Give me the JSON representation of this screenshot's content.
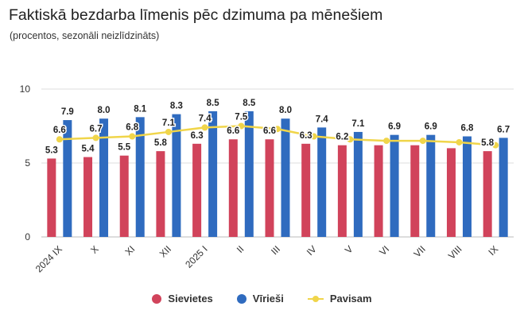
{
  "chart_data": {
    "type": "bar",
    "title": "Faktiskā bezdarba līmenis pēc dzimuma pa mēnešiem",
    "subtitle": "(procentos, sezonāli neizlīdzināts)",
    "categories": [
      "2024 IX",
      "X",
      "XI",
      "XII",
      "2025 I",
      "II",
      "III",
      "IV",
      "V",
      "VI",
      "VII",
      "VIII",
      "IX"
    ],
    "ylim": [
      0,
      10
    ],
    "yticks": [
      0,
      5,
      10
    ],
    "grid": true,
    "legend_position": "bottom",
    "series": [
      {
        "name": "Sievietes",
        "kind": "bar",
        "color": "#d1435b",
        "values": [
          5.3,
          5.4,
          5.5,
          5.8,
          6.3,
          6.6,
          6.6,
          6.3,
          6.2,
          6.2,
          6.2,
          6.0,
          5.8
        ],
        "labels": [
          "5.3",
          "5.4",
          "5.5",
          "5.8",
          "6.3",
          "6.6",
          "6.6",
          "6.3",
          "6.2",
          "",
          "",
          "",
          "5.8"
        ]
      },
      {
        "name": "Vīrieši",
        "kind": "bar",
        "color": "#2f6bbf",
        "values": [
          7.9,
          8.0,
          8.1,
          8.3,
          8.5,
          8.5,
          8.0,
          7.4,
          7.1,
          6.9,
          6.9,
          6.8,
          6.7
        ],
        "labels": [
          "7.9",
          "8.0",
          "8.1",
          "8.3",
          "8.5",
          "8.5",
          "8.0",
          "7.4",
          "7.1",
          "6.9",
          "6.9",
          "6.8",
          "6.7"
        ]
      },
      {
        "name": "Pavisam",
        "kind": "line",
        "color": "#f0d54a",
        "values": [
          6.6,
          6.7,
          6.8,
          7.1,
          7.4,
          7.5,
          7.3,
          6.8,
          6.6,
          6.5,
          6.5,
          6.4,
          6.2
        ],
        "labels": [
          "6.6",
          "6.7",
          "6.8",
          "7.1",
          "7.4",
          "7.5",
          "",
          "",
          "",
          "",
          "",
          "",
          ""
        ]
      }
    ]
  }
}
